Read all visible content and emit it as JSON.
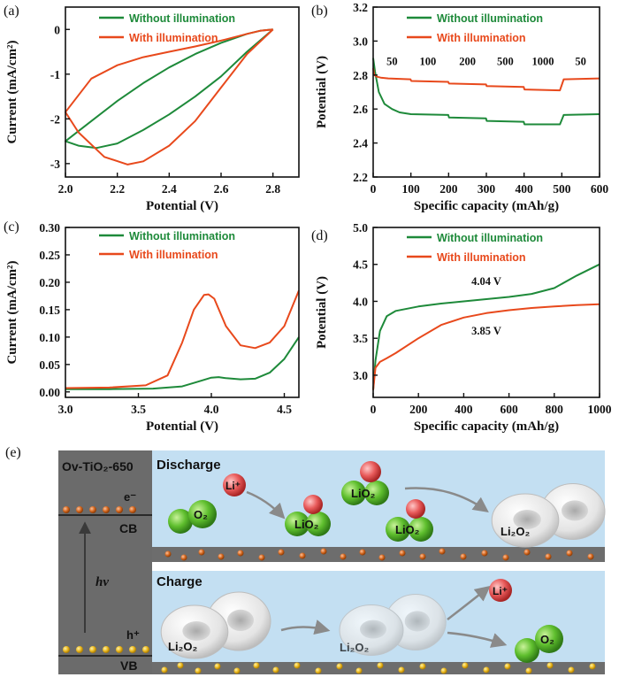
{
  "colors": {
    "green": "#1e8a3a",
    "orange": "#e8491c",
    "panel_bg": "#c3dff2",
    "band": "#6d6d6d",
    "gray": "#5e5e5e"
  },
  "chart_data": [
    {
      "id": "a",
      "type": "line",
      "panel_label": "(a)",
      "xlabel": "Potential (V)",
      "ylabel": "Current (mA/cm²)",
      "xlim": [
        2.0,
        2.9
      ],
      "ylim": [
        -3.3,
        0.5
      ],
      "xticks": [
        "2.0",
        "2.2",
        "2.4",
        "2.6",
        "2.8"
      ],
      "xtick_values": [
        2.0,
        2.2,
        2.4,
        2.6,
        2.8
      ],
      "yticks": [
        "-3",
        "-2",
        "-1",
        "0"
      ],
      "ytick_values": [
        -3,
        -2,
        -1,
        0
      ],
      "series": [
        {
          "name": "Without illumination",
          "x": [
            2.8,
            2.7,
            2.6,
            2.5,
            2.4,
            2.3,
            2.2,
            2.12,
            2.05,
            2.0,
            2.1,
            2.2,
            2.3,
            2.4,
            2.5,
            2.6,
            2.7,
            2.75,
            2.8
          ],
          "y": [
            0,
            -0.5,
            -1.05,
            -1.5,
            -1.9,
            -2.25,
            -2.55,
            -2.65,
            -2.6,
            -2.5,
            -2.05,
            -1.6,
            -1.2,
            -0.85,
            -0.55,
            -0.3,
            -0.1,
            -0.03,
            0
          ]
        },
        {
          "name": "With illumination",
          "x": [
            2.8,
            2.7,
            2.6,
            2.5,
            2.4,
            2.3,
            2.24,
            2.15,
            2.05,
            2.0,
            2.1,
            2.2,
            2.3,
            2.4,
            2.5,
            2.6,
            2.7,
            2.75,
            2.8
          ],
          "y": [
            0,
            -0.55,
            -1.3,
            -2.05,
            -2.6,
            -2.95,
            -3.02,
            -2.85,
            -2.3,
            -1.85,
            -1.1,
            -0.8,
            -0.62,
            -0.5,
            -0.38,
            -0.25,
            -0.1,
            -0.03,
            0
          ]
        }
      ]
    },
    {
      "id": "b",
      "type": "line",
      "panel_label": "(b)",
      "xlabel": "Specific capacity (mAh/g)",
      "ylabel": "Potential (V)",
      "xlim": [
        0,
        600
      ],
      "ylim": [
        2.2,
        3.2
      ],
      "xticks": [
        "0",
        "100",
        "200",
        "300",
        "400",
        "500",
        "600"
      ],
      "xtick_values": [
        0,
        100,
        200,
        300,
        400,
        500,
        600
      ],
      "yticks": [
        "2.2",
        "2.4",
        "2.6",
        "2.8",
        "3.0",
        "3.2"
      ],
      "ytick_values": [
        2.2,
        2.4,
        2.6,
        2.8,
        3.0,
        3.2
      ],
      "annotations": [
        "50",
        "100",
        "200",
        "500",
        "1000",
        "50"
      ],
      "annotation_x": [
        50,
        145,
        250,
        350,
        450,
        550
      ],
      "annotation_y": 2.86,
      "series": [
        {
          "name": "Without illumination",
          "x": [
            0,
            5,
            15,
            30,
            50,
            70,
            100,
            199,
            201,
            299,
            301,
            399,
            401,
            495,
            505,
            600
          ],
          "y": [
            2.9,
            2.82,
            2.7,
            2.63,
            2.6,
            2.58,
            2.57,
            2.565,
            2.55,
            2.545,
            2.53,
            2.525,
            2.51,
            2.51,
            2.565,
            2.57
          ]
        },
        {
          "name": "With illumination",
          "x": [
            0,
            3,
            10,
            20,
            40,
            99,
            101,
            199,
            201,
            299,
            301,
            399,
            401,
            495,
            505,
            600
          ],
          "y": [
            2.84,
            2.8,
            2.79,
            2.785,
            2.78,
            2.775,
            2.765,
            2.76,
            2.75,
            2.745,
            2.735,
            2.73,
            2.715,
            2.71,
            2.775,
            2.78
          ]
        }
      ]
    },
    {
      "id": "c",
      "type": "line",
      "panel_label": "(c)",
      "xlabel": "Potential (V)",
      "ylabel": "Current (mA/cm²)",
      "xlim": [
        3.0,
        4.6
      ],
      "ylim": [
        -0.01,
        0.3
      ],
      "xticks": [
        "3.0",
        "3.5",
        "4.0",
        "4.5"
      ],
      "xtick_values": [
        3.0,
        3.5,
        4.0,
        4.5
      ],
      "yticks": [
        "0.00",
        "0.05",
        "0.10",
        "0.15",
        "0.20",
        "0.25",
        "0.30"
      ],
      "ytick_values": [
        0,
        0.05,
        0.1,
        0.15,
        0.2,
        0.25,
        0.3
      ],
      "series": [
        {
          "name": "Without illumination",
          "x": [
            3.0,
            3.3,
            3.6,
            3.8,
            3.9,
            4.0,
            4.05,
            4.1,
            4.2,
            4.3,
            4.4,
            4.5,
            4.6
          ],
          "y": [
            0.005,
            0.005,
            0.006,
            0.01,
            0.018,
            0.026,
            0.027,
            0.025,
            0.023,
            0.024,
            0.035,
            0.06,
            0.1
          ]
        },
        {
          "name": "With illumination",
          "x": [
            3.0,
            3.3,
            3.55,
            3.7,
            3.8,
            3.88,
            3.95,
            3.98,
            4.02,
            4.1,
            4.2,
            4.3,
            4.4,
            4.5,
            4.6
          ],
          "y": [
            0.007,
            0.008,
            0.012,
            0.03,
            0.09,
            0.15,
            0.177,
            0.178,
            0.17,
            0.12,
            0.085,
            0.08,
            0.09,
            0.12,
            0.185
          ]
        }
      ]
    },
    {
      "id": "d",
      "type": "line",
      "panel_label": "(d)",
      "xlabel": "Specific capacity (mAh/g)",
      "ylabel": "Potential (V)",
      "xlim": [
        0,
        1000
      ],
      "ylim": [
        2.7,
        5.0
      ],
      "xticks": [
        "0",
        "200",
        "400",
        "600",
        "800",
        "1000"
      ],
      "xtick_values": [
        0,
        200,
        400,
        600,
        800,
        1000
      ],
      "yticks": [
        "3.0",
        "3.5",
        "4.0",
        "4.5",
        "5.0"
      ],
      "ytick_values": [
        3.0,
        3.5,
        4.0,
        4.5,
        5.0
      ],
      "annotations": [
        "4.04 V",
        "3.85 V"
      ],
      "annotation_x": [
        500,
        500
      ],
      "annotation_y": [
        4.22,
        3.55
      ],
      "series": [
        {
          "name": "Without illumination",
          "x": [
            0,
            10,
            30,
            60,
            100,
            200,
            300,
            400,
            500,
            600,
            700,
            800,
            900,
            1000
          ],
          "y": [
            2.8,
            3.2,
            3.6,
            3.8,
            3.87,
            3.93,
            3.97,
            4.0,
            4.03,
            4.06,
            4.1,
            4.18,
            4.35,
            4.5
          ]
        },
        {
          "name": "With illumination",
          "x": [
            0,
            10,
            30,
            60,
            100,
            200,
            300,
            400,
            500,
            600,
            700,
            800,
            900,
            1000
          ],
          "y": [
            2.8,
            3.1,
            3.18,
            3.23,
            3.3,
            3.5,
            3.68,
            3.78,
            3.84,
            3.88,
            3.91,
            3.93,
            3.95,
            3.96
          ]
        }
      ]
    }
  ],
  "schematic": {
    "panel_label": "(e)",
    "band_title": "Ov-TiO₂-650",
    "electron_label": "e⁻",
    "cb_label": "CB",
    "hv_label": "hv",
    "hole_label": "h⁺",
    "vb_label": "VB",
    "discharge_title": "Discharge",
    "charge_title": "Charge",
    "li_ion": "Li⁺",
    "o2": "O₂",
    "lio2": "LiO₂",
    "li2o2": "Li₂O₂"
  }
}
